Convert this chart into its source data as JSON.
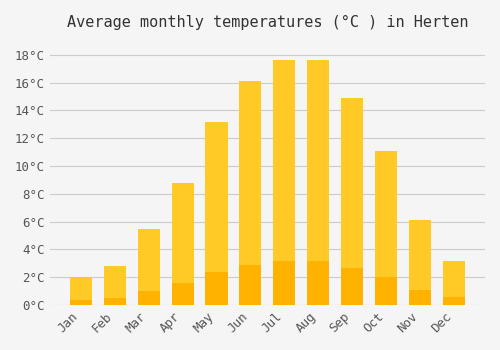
{
  "title": "Average monthly temperatures (°C ) in Herten",
  "months": [
    "Jan",
    "Feb",
    "Mar",
    "Apr",
    "May",
    "Jun",
    "Jul",
    "Aug",
    "Sep",
    "Oct",
    "Nov",
    "Dec"
  ],
  "values": [
    2.0,
    2.8,
    5.5,
    8.8,
    13.2,
    16.1,
    17.6,
    17.6,
    14.9,
    11.1,
    6.1,
    3.2
  ],
  "bar_color_top": "#FFC926",
  "bar_color_bottom": "#FFB300",
  "background_color": "#F5F5F5",
  "grid_color": "#CCCCCC",
  "ylim": [
    0,
    19
  ],
  "yticks": [
    0,
    2,
    4,
    6,
    8,
    10,
    12,
    14,
    16,
    18
  ],
  "ytick_labels": [
    "0°C",
    "2°C",
    "4°C",
    "6°C",
    "8°C",
    "10°C",
    "12°C",
    "14°C",
    "16°C",
    "18°C"
  ],
  "title_fontsize": 11,
  "tick_fontsize": 9,
  "font_family": "monospace"
}
